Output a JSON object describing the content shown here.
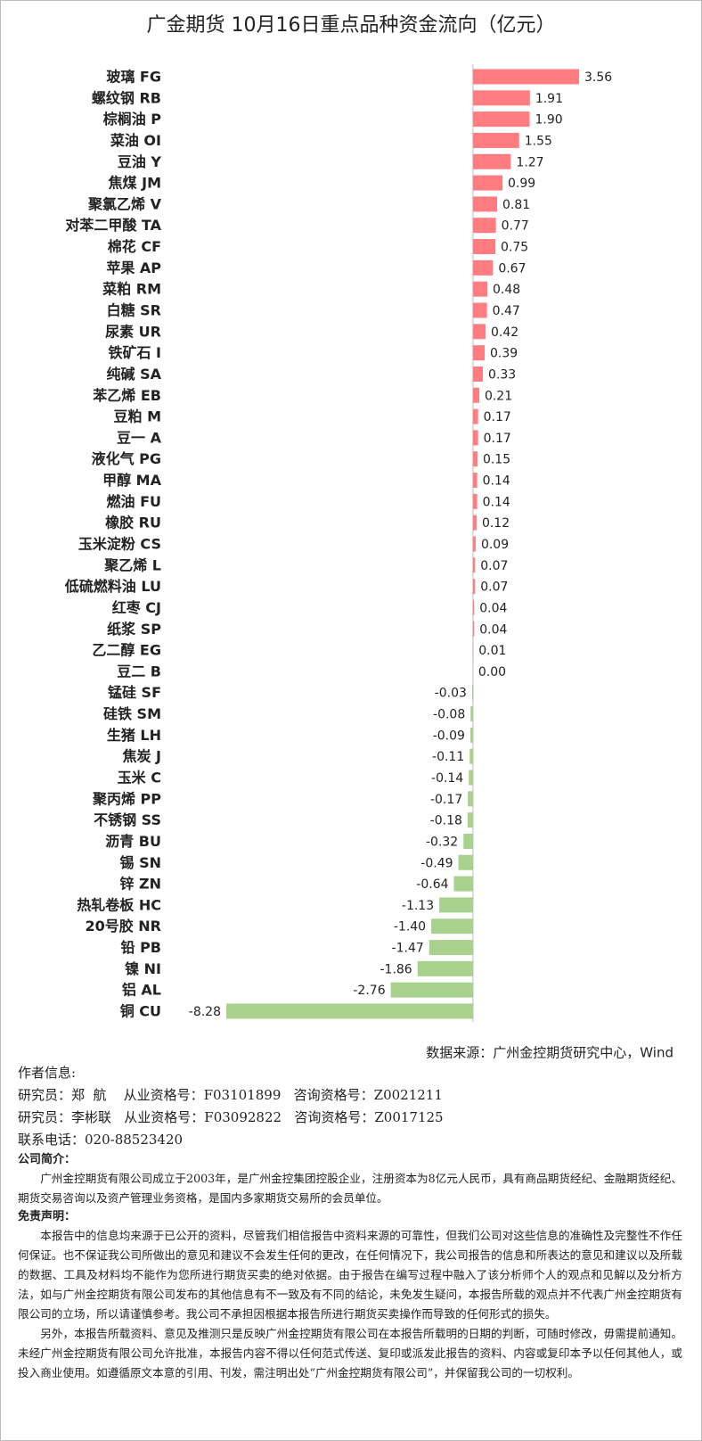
{
  "chart_data": {
    "type": "bar",
    "orientation": "horizontal",
    "title": "广金期货 10月16日重点品种资金流向（亿元）",
    "categories": [
      "玻璃 FG",
      "螺纹钢 RB",
      "棕榈油 P",
      "菜油 OI",
      "豆油 Y",
      "焦煤 JM",
      "聚氯乙烯 V",
      "对苯二甲酸 TA",
      "棉花 CF",
      "苹果 AP",
      "菜粕 RM",
      "白糖 SR",
      "尿素 UR",
      "铁矿石 I",
      "纯碱 SA",
      "苯乙烯 EB",
      "豆粕 M",
      "豆一 A",
      "液化气 PG",
      "甲醇 MA",
      "燃油 FU",
      "橡胶 RU",
      "玉米淀粉 CS",
      "聚乙烯 L",
      "低硫燃料油 LU",
      "红枣 CJ",
      "纸浆 SP",
      "乙二醇 EG",
      "豆二 B",
      "锰硅 SF",
      "硅铁 SM",
      "生猪 LH",
      "焦炭 J",
      "玉米 C",
      "聚丙烯 PP",
      "不锈钢 SS",
      "沥青 BU",
      "锡 SN",
      "锌 ZN",
      "热轧卷板 HC",
      "20号胶 NR",
      "铅 PB",
      "镍 NI",
      "铝 AL",
      "铜 CU"
    ],
    "values": [
      3.56,
      1.91,
      1.9,
      1.55,
      1.27,
      0.99,
      0.81,
      0.77,
      0.75,
      0.67,
      0.48,
      0.47,
      0.42,
      0.39,
      0.33,
      0.21,
      0.17,
      0.17,
      0.15,
      0.14,
      0.14,
      0.12,
      0.09,
      0.07,
      0.07,
      0.04,
      0.04,
      0.01,
      0,
      -0.03,
      -0.08,
      -0.09,
      -0.11,
      -0.14,
      -0.17,
      -0.18,
      -0.32,
      -0.49,
      -0.64,
      -1.13,
      -1.4,
      -1.47,
      -1.86,
      -2.76,
      -8.28
    ],
    "value_labels": [
      "3.56",
      "1.91",
      "1.90",
      "1.55",
      "1.27",
      "0.99",
      "0.81",
      "0.77",
      "0.75",
      "0.67",
      "0.48",
      "0.47",
      "0.42",
      "0.39",
      "0.33",
      "0.21",
      "0.17",
      "0.17",
      "0.15",
      "0.14",
      "0.14",
      "0.12",
      "0.09",
      "0.07",
      "0.07",
      "0.04",
      "0.04",
      "0.01",
      "0.00",
      "-0.03",
      "-0.08",
      "-0.09",
      "-0.11",
      "-0.14",
      "-0.17",
      "-0.18",
      "-0.32",
      "-0.49",
      "-0.64",
      "-1.13",
      "-1.40",
      "-1.47",
      "-1.86",
      "-2.76",
      "-8.28"
    ],
    "positive_color": "#ff7c80",
    "negative_color": "#a9d18e",
    "source": "数据来源：广州金控期货研究中心，Wind"
  },
  "footer": {
    "author_heading": "作者信息:",
    "researchers": [
      "研究员：郑  航    从业资格号：F03101899   咨询资格号：Z0021211",
      "研究员：李彬联   从业资格号：F03092822   咨询资格号：Z0017125"
    ],
    "phone": "联系电话：020-88523420",
    "company_heading": "公司简介：",
    "company_text": "广州金控期货有限公司成立于2003年，是广州金控集团控股企业，注册资本为8亿元人民币，具有商品期货经纪、金融期货经纪、期货交易咨询以及资产管理业务资格，是国内多家期货交易所的会员单位。",
    "disclaimer_heading": "免责声明：",
    "disclaimer_paragraphs": [
      "本报告中的信息均来源于已公开的资料，尽管我们相信报告中资料来源的可靠性，但我们公司对这些信息的准确性及完整性不作任何保证。也不保证我公司所做出的意见和建议不会发生任何的更改，在任何情况下，我公司报告的信息和所表达的意见和建议以及所载的数据、工具及材料均不能作为您所进行期货买卖的绝对依据。由于报告在编写过程中融入了该分析师个人的观点和见解以及分析方法，如与广州金控期货有限公司发布的其他信息有不一致及有不同的结论，未免发生疑问，本报告所载的观点并不代表广州金控期货有限公司的立场，所以请谨慎参考。我公司不承担因根据本报告所进行期货买卖操作而导致的任何形式的损失。",
      "另外，本报告所载资料、意见及推测只是反映广州金控期货有限公司在本报告所载明的日期的判断，可随时修改，毋需提前通知。未经广州金控期货有限公司允许批准，本报告内容不得以任何范式传送、复印或派发此报告的资料、内容或复印本予以任何其他人，或投入商业使用。如遵循原文本意的引用、刊发，需注明出处“广州金控期货有限公司”，并保留我公司的一切权利。"
    ]
  }
}
